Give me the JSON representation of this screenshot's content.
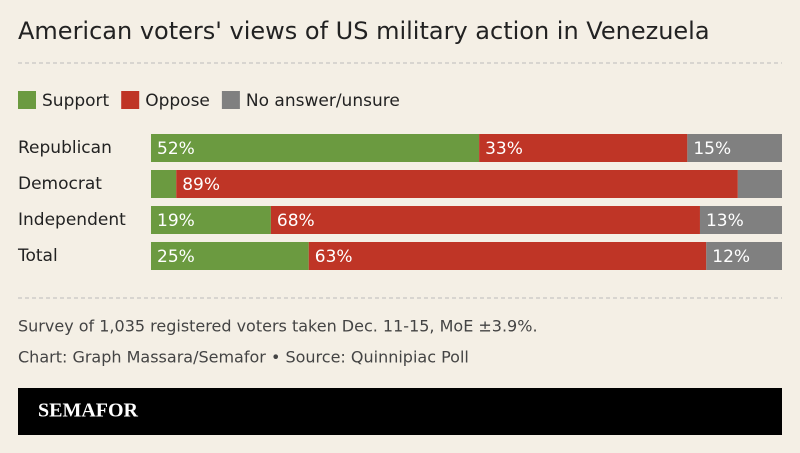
{
  "chart_data": {
    "type": "bar",
    "orientation": "horizontal",
    "stacked": true,
    "title": "American voters' views of US military action in Venezuela",
    "categories": [
      "Republican",
      "Democrat",
      "Independent",
      "Total"
    ],
    "xlim": [
      0,
      100
    ],
    "legend": "top-left",
    "series": [
      {
        "name": "Support",
        "color": "#6b9a40",
        "values": [
          52,
          4,
          19,
          25
        ],
        "value_labels": [
          "52%",
          null,
          "19%",
          "25%"
        ]
      },
      {
        "name": "Oppose",
        "color": "#bf3526",
        "values": [
          33,
          89,
          68,
          63
        ],
        "value_labels": [
          "33%",
          "89%",
          "68%",
          "63%"
        ]
      },
      {
        "name": "No answer/unsure",
        "color": "#808080",
        "values": [
          15,
          7,
          13,
          12
        ],
        "value_labels": [
          "15%",
          null,
          "13%",
          "12%"
        ]
      }
    ]
  },
  "footer": {
    "note": "Survey of 1,035 registered voters taken Dec. 11-15, MoE ±3.9%.",
    "credit": "Chart: Graph Massara/Semafor • Source: Quinnipiac Poll",
    "brand": "SEMAFOR"
  }
}
